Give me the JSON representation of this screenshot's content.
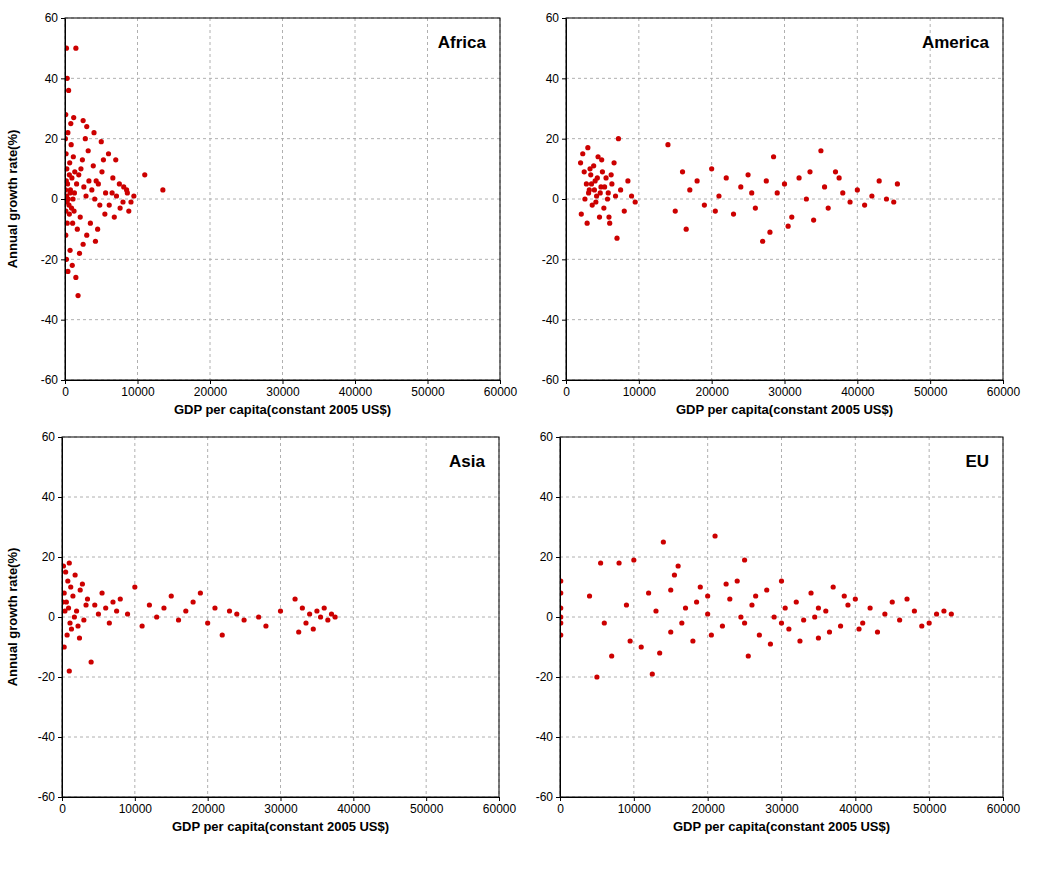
{
  "chart_data": [
    {
      "type": "scatter",
      "title": "Africa",
      "x_label": "GDP per capita(constant 2005 US$)",
      "y_label": "Annual growth rate(%)",
      "color": "#cc0000",
      "marker": "circle",
      "grid": true,
      "xlim": [
        0,
        60000
      ],
      "ylim": [
        -60,
        60
      ],
      "xticks": [
        0,
        10000,
        20000,
        30000,
        40000,
        50000,
        60000
      ],
      "yticks": [
        -60,
        -40,
        -20,
        0,
        20,
        40,
        60
      ],
      "x": [
        200,
        1500,
        300,
        500,
        100,
        800,
        1200,
        2500,
        3000,
        4000,
        5000,
        6000,
        7000,
        11000,
        13500,
        9500,
        8500,
        8000,
        7500,
        6500,
        5500,
        4500,
        4200,
        3500,
        3000,
        2500,
        2000,
        1800,
        1500,
        1000,
        700,
        400,
        200,
        100,
        300,
        600,
        900,
        1100,
        1300,
        1600,
        1900,
        2200,
        2600,
        2900,
        3300,
        3700,
        4100,
        4600,
        5100,
        5600,
        6100,
        6600,
        7100,
        7600,
        8100,
        8600,
        9100,
        150,
        250,
        350,
        450,
        550,
        650,
        750,
        850,
        950,
        1050,
        1150,
        1250,
        1350,
        50,
        80,
        120,
        180,
        220,
        280,
        400,
        600,
        700,
        1700,
        2100,
        2400,
        2800,
        3200,
        3900,
        4300,
        4800,
        5300,
        6800,
        8800
      ],
      "values": [
        50,
        50,
        40,
        36,
        28,
        25,
        27,
        26,
        24,
        22,
        19,
        15,
        13,
        8,
        3,
        1,
        3,
        -1,
        5,
        2,
        -5,
        -10,
        -14,
        -8,
        -12,
        -15,
        -18,
        -32,
        -26,
        -22,
        -17,
        -24,
        -20,
        -12,
        -8,
        -5,
        -3,
        0,
        2,
        5,
        8,
        10,
        4,
        1,
        6,
        3,
        0,
        5,
        9,
        2,
        -2,
        7,
        1,
        -3,
        4,
        2,
        -1,
        15,
        10,
        5,
        0,
        -2,
        12,
        3,
        18,
        7,
        -8,
        14,
        -4,
        9,
        20,
        3,
        -4,
        6,
        1,
        -1,
        22,
        8,
        2,
        -10,
        -6,
        13,
        20,
        16,
        11,
        6,
        -2,
        13,
        -6,
        -4
      ]
    },
    {
      "type": "scatter",
      "title": "America",
      "x_label": "GDP per capita(constant 2005 US$)",
      "color": "#cc0000",
      "marker": "circle",
      "grid": true,
      "xlim": [
        0,
        60000
      ],
      "ylim": [
        -60,
        60
      ],
      "xticks": [
        0,
        10000,
        20000,
        30000,
        40000,
        50000,
        60000
      ],
      "yticks": [
        -60,
        -40,
        -20,
        0,
        20,
        40,
        60
      ],
      "x": [
        2000,
        2300,
        2500,
        2800,
        3000,
        3200,
        3400,
        3600,
        3800,
        4000,
        4200,
        4400,
        4600,
        4800,
        5000,
        5200,
        5500,
        5800,
        6000,
        6300,
        6600,
        7000,
        7200,
        7500,
        8000,
        8500,
        9000,
        9500,
        2100,
        2600,
        3100,
        3500,
        3900,
        4300,
        4700,
        5300,
        5700,
        6200,
        2900,
        3300,
        4100,
        4900,
        5900,
        6800,
        14000,
        15000,
        16000,
        16500,
        17000,
        18000,
        19000,
        20000,
        21000,
        22000,
        23000,
        24000,
        25000,
        26000,
        27000,
        27500,
        28000,
        28500,
        29000,
        30000,
        31000,
        32000,
        33000,
        34000,
        35000,
        35500,
        36000,
        37000,
        38000,
        39000,
        40000,
        41000,
        42000,
        43000,
        44000,
        45000,
        45500,
        20500,
        25500,
        30500,
        33500,
        37500
      ],
      "values": [
        12,
        15,
        9,
        5,
        17,
        3,
        8,
        -2,
        11,
        6,
        1,
        14,
        -6,
        4,
        9,
        -3,
        7,
        2,
        -8,
        5,
        12,
        -13,
        20,
        3,
        -4,
        6,
        1,
        -1,
        -5,
        0,
        2,
        5,
        3,
        7,
        2,
        4,
        0,
        8,
        -8,
        10,
        -1,
        13,
        -6,
        1,
        18,
        -4,
        9,
        -10,
        3,
        6,
        -2,
        10,
        1,
        7,
        -5,
        4,
        8,
        -3,
        -14,
        6,
        -11,
        14,
        2,
        5,
        -6,
        7,
        0,
        -7,
        16,
        4,
        -3,
        9,
        2,
        -1,
        3,
        -2,
        1,
        6,
        0,
        -1,
        5,
        -4,
        2,
        -9,
        9,
        7
      ]
    },
    {
      "type": "scatter",
      "title": "Asia",
      "x_label": "GDP per capita(constant 2005 US$)",
      "y_label": "Annual growth rate(%)",
      "color": "#cc0000",
      "marker": "circle",
      "grid": true,
      "xlim": [
        0,
        60000
      ],
      "ylim": [
        -60,
        60
      ],
      "xticks": [
        0,
        10000,
        20000,
        30000,
        40000,
        50000,
        60000
      ],
      "yticks": [
        -60,
        -40,
        -20,
        0,
        20,
        40,
        60
      ],
      "x": [
        200,
        500,
        800,
        1000,
        300,
        600,
        900,
        1200,
        1500,
        1800,
        2000,
        2500,
        3000,
        3500,
        4000,
        4500,
        5000,
        5500,
        6000,
        6500,
        7000,
        1000,
        300,
        700,
        1300,
        1700,
        2200,
        2800,
        3300,
        100,
        400,
        1100,
        2400,
        7500,
        8000,
        9000,
        10000,
        11000,
        12000,
        13000,
        14000,
        15000,
        16000,
        17000,
        18000,
        19000,
        20000,
        21000,
        22000,
        23000,
        24000,
        25000,
        27000,
        28000,
        30000,
        32000,
        32500,
        33000,
        33500,
        34000,
        34500,
        35000,
        35500,
        36000,
        36500,
        37000,
        37500
      ],
      "values": [
        17,
        15,
        12,
        18,
        8,
        5,
        3,
        10,
        7,
        14,
        2,
        9,
        -1,
        6,
        -15,
        4,
        1,
        8,
        3,
        -2,
        5,
        -18,
        -10,
        -6,
        -4,
        0,
        -3,
        11,
        4,
        5,
        2,
        -2,
        -7,
        2,
        6,
        1,
        10,
        -3,
        4,
        0,
        3,
        7,
        -1,
        2,
        5,
        8,
        -2,
        3,
        -6,
        2,
        1,
        -1,
        0,
        -3,
        2,
        6,
        -5,
        3,
        -2,
        1,
        -4,
        2,
        0,
        3,
        -1,
        1,
        0
      ]
    },
    {
      "type": "scatter",
      "title": "EU",
      "x_label": "GDP per capita(constant 2005 US$)",
      "color": "#cc0000",
      "marker": "circle",
      "grid": true,
      "xlim": [
        0,
        60000
      ],
      "ylim": [
        -60,
        60
      ],
      "xticks": [
        0,
        10000,
        20000,
        30000,
        40000,
        50000,
        60000
      ],
      "yticks": [
        -60,
        -40,
        -20,
        0,
        20,
        40,
        60
      ],
      "x": [
        100,
        100,
        100,
        100,
        100,
        100,
        4000,
        5000,
        5500,
        6000,
        7000,
        8000,
        9000,
        10000,
        11000,
        12000,
        12500,
        13000,
        14000,
        15000,
        15500,
        16000,
        17000,
        18000,
        19000,
        20000,
        21000,
        22000,
        23000,
        24000,
        25000,
        25500,
        26000,
        27000,
        28000,
        29000,
        30000,
        31000,
        32000,
        33000,
        34000,
        35000,
        36000,
        37000,
        38000,
        39000,
        40000,
        41000,
        42000,
        43000,
        44000,
        45000,
        46000,
        47000,
        48000,
        49000,
        50000,
        51000,
        52000,
        53000,
        9500,
        13500,
        16500,
        18500,
        20500,
        22500,
        24500,
        26500,
        28500,
        30500,
        32500,
        34500,
        36500,
        38500,
        40500,
        15000,
        20000,
        25000,
        30000,
        35000
      ],
      "values": [
        12,
        8,
        3,
        -2,
        -6,
        0,
        7,
        -20,
        18,
        -2,
        -13,
        18,
        4,
        19,
        -10,
        8,
        -19,
        2,
        25,
        -5,
        14,
        17,
        3,
        -8,
        10,
        1,
        27,
        -3,
        6,
        12,
        19,
        -13,
        4,
        -6,
        9,
        0,
        12,
        -4,
        5,
        -1,
        8,
        -7,
        2,
        10,
        -3,
        4,
        6,
        -2,
        3,
        -5,
        1,
        5,
        -1,
        6,
        2,
        -3,
        -2,
        1,
        2,
        1,
        -8,
        -12,
        -2,
        5,
        -6,
        11,
        0,
        7,
        -9,
        3,
        -8,
        0,
        -5,
        7,
        -4,
        9,
        7,
        -2,
        -2,
        3
      ]
    }
  ]
}
